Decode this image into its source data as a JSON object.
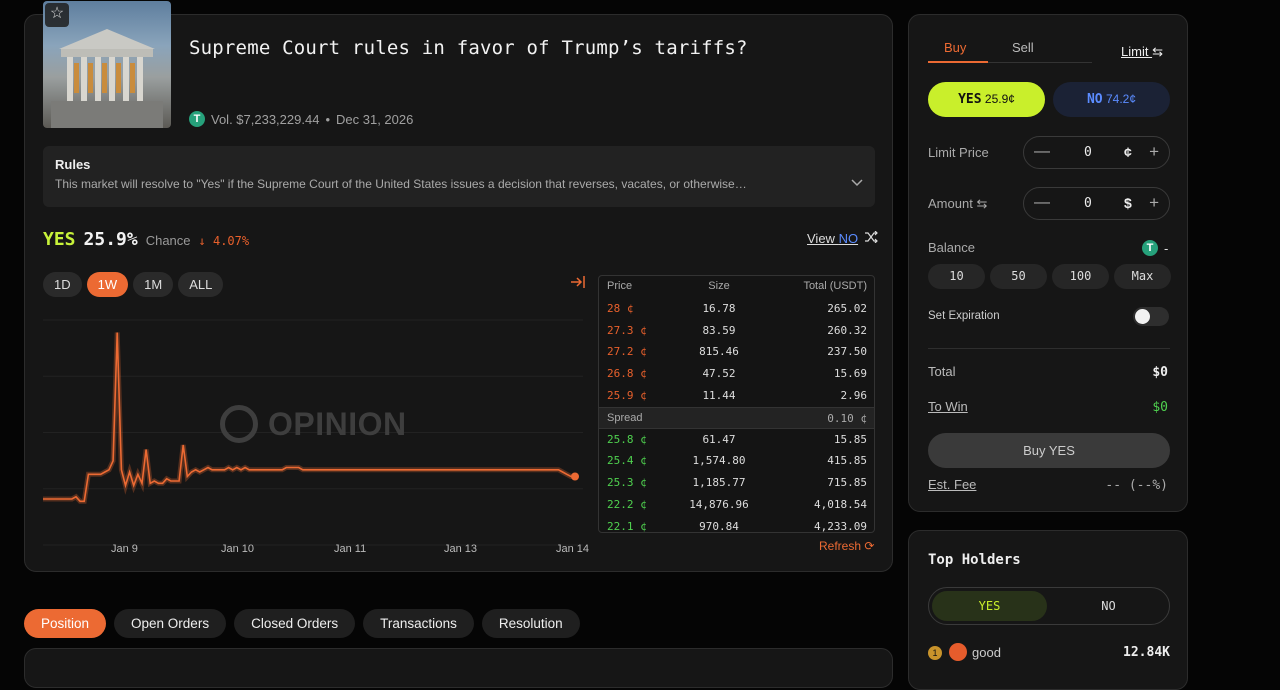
{
  "market": {
    "title": "Supreme Court rules in favor of Trump’s tariffs?",
    "volume": "Vol. $7,233,229.44",
    "separator": "•",
    "end_date": "Dec 31, 2026",
    "rules_heading": "Rules",
    "rules_text": "This market will resolve to \"Yes\" if the Supreme Court of the United States issues a decision that reverses, vacates, or otherwise…"
  },
  "chance": {
    "outcome": "YES",
    "value": "25.9%",
    "label": "Chance",
    "delta": "↓ 4.07%",
    "view_prefix": "View ",
    "view_no": "NO"
  },
  "ranges": [
    "1D",
    "1W",
    "1M",
    "ALL"
  ],
  "active_range": "1W",
  "watermark": "OPINION",
  "orderbook": {
    "headers": [
      "Price",
      "Size",
      "Total (USDT)"
    ],
    "asks": [
      [
        "28 ¢",
        "16.78",
        "265.02"
      ],
      [
        "27.3 ¢",
        "83.59",
        "260.32"
      ],
      [
        "27.2 ¢",
        "815.46",
        "237.50"
      ],
      [
        "26.8 ¢",
        "47.52",
        "15.69"
      ],
      [
        "25.9 ¢",
        "11.44",
        "2.96"
      ]
    ],
    "spread_label": "Spread",
    "spread_value": "0.10 ¢",
    "bids": [
      [
        "25.8 ¢",
        "61.47",
        "15.85"
      ],
      [
        "25.4 ¢",
        "1,574.80",
        "415.85"
      ],
      [
        "25.3 ¢",
        "1,185.77",
        "715.85"
      ],
      [
        "22.2 ¢",
        "14,876.96",
        "4,018.54"
      ],
      [
        "22.1 ¢",
        "970.84",
        "4,233.09"
      ]
    ],
    "refresh": "Refresh ⟳"
  },
  "chart_data": {
    "type": "line",
    "x_ticks": [
      "Jan 9",
      "Jan 10",
      "Jan 11",
      "Jan 13",
      "Jan 14"
    ],
    "ylim": [
      0,
      100
    ],
    "grid": true,
    "color": "#ec6a33",
    "series": [
      {
        "values": [
          16,
          16,
          16,
          16,
          16,
          16,
          16,
          16,
          17,
          15,
          15,
          27,
          27,
          27,
          27,
          28,
          29,
          33,
          90,
          29,
          22,
          28,
          22,
          27,
          23,
          38,
          23,
          24,
          23,
          23,
          25,
          24,
          24,
          24,
          40,
          26,
          28,
          29,
          28,
          29,
          30,
          29,
          29,
          29,
          29,
          30,
          29,
          30,
          29,
          30,
          29,
          29,
          29,
          29,
          29,
          29,
          29,
          29,
          29,
          30,
          30,
          30,
          30,
          29,
          29,
          29,
          29,
          29,
          29,
          29,
          29,
          29,
          29,
          29,
          29,
          29,
          29,
          29,
          29,
          29,
          29,
          29,
          29,
          29,
          29,
          29,
          29,
          29,
          29,
          29,
          29,
          29,
          29,
          29,
          29,
          29,
          29,
          29,
          29,
          29,
          29,
          29,
          29,
          29,
          29,
          29,
          29,
          29,
          29,
          29,
          29,
          29,
          29,
          29,
          29,
          29,
          29,
          29,
          29,
          29,
          29,
          29,
          29,
          29,
          29,
          29,
          28,
          27,
          26,
          26
        ]
      }
    ]
  },
  "tabs": [
    "Position",
    "Open Orders",
    "Closed Orders",
    "Transactions",
    "Resolution"
  ],
  "active_tab": "Position",
  "trade": {
    "buy": "Buy",
    "sell": "Sell",
    "mode": "Limit",
    "yes_label": "YES",
    "yes_price": "25.9¢",
    "no_label": "NO",
    "no_price": "74.2¢",
    "limit_price_label": "Limit Price",
    "limit_price_value": "0",
    "limit_price_unit": "¢",
    "amount_label": "Amount",
    "amount_value": "0",
    "amount_unit": "$",
    "balance_label": "Balance",
    "balance_value": "-",
    "presets": [
      "10",
      "50",
      "100",
      "Max"
    ],
    "set_expiration": "Set Expiration",
    "total_label": "Total",
    "total_value": "$0",
    "towin_label": "To Win",
    "towin_value": "$0",
    "buy_button": "Buy YES",
    "fee_label": "Est. Fee",
    "fee_value": "-- (--%)"
  },
  "holders": {
    "title": "Top Holders",
    "yes": "YES",
    "no": "NO",
    "rows": [
      {
        "rank": "1",
        "name": "good",
        "amount": "12.84K"
      }
    ]
  }
}
